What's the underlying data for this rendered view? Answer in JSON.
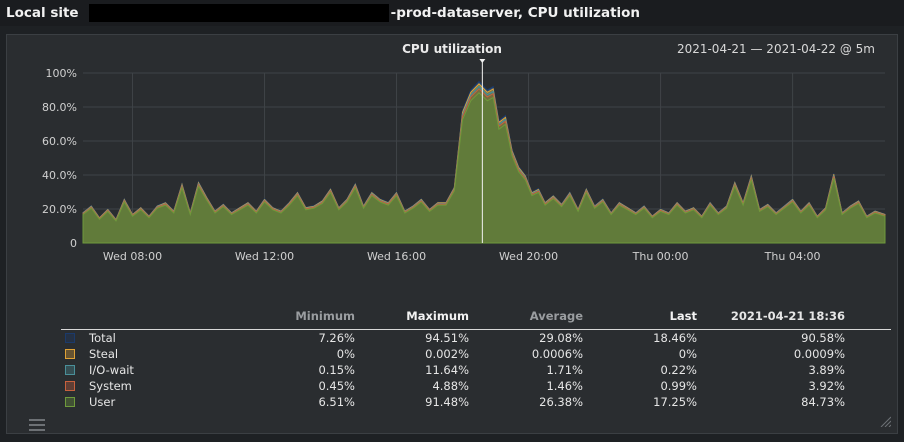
{
  "window": {
    "site_label": "Local site",
    "title_suffix": "-prod-dataserver, CPU utilization"
  },
  "chart": {
    "title": "CPU utilization",
    "time_range": "2021-04-21 — 2021-04-22 @ 5m"
  },
  "chart_data": {
    "type": "area",
    "title": "CPU utilization",
    "x_tick_labels": [
      "Wed 08:00",
      "Wed 12:00",
      "Wed 16:00",
      "Wed 20:00",
      "Thu 00:00",
      "Thu 04:00"
    ],
    "y_tick_labels": [
      "0",
      "20.0%",
      "40.0%",
      "60.0%",
      "80.0%",
      "100%"
    ],
    "ylim": [
      0,
      100
    ],
    "x_range_hours": [
      6.5,
      30.8
    ],
    "grid": true,
    "cursor_time": "2021-04-21 18:36",
    "total_profile": [
      [
        6.5,
        18
      ],
      [
        6.75,
        22
      ],
      [
        7.0,
        15
      ],
      [
        7.25,
        20
      ],
      [
        7.5,
        14
      ],
      [
        7.75,
        26
      ],
      [
        8.0,
        17
      ],
      [
        8.25,
        21
      ],
      [
        8.5,
        16
      ],
      [
        8.75,
        22
      ],
      [
        9.0,
        24
      ],
      [
        9.25,
        19
      ],
      [
        9.5,
        35
      ],
      [
        9.75,
        18
      ],
      [
        10.0,
        36
      ],
      [
        10.25,
        27
      ],
      [
        10.5,
        19
      ],
      [
        10.75,
        23
      ],
      [
        11.0,
        18
      ],
      [
        11.25,
        21
      ],
      [
        11.5,
        24
      ],
      [
        11.75,
        19
      ],
      [
        12.0,
        26
      ],
      [
        12.25,
        21
      ],
      [
        12.5,
        19
      ],
      [
        12.75,
        24
      ],
      [
        13.0,
        30
      ],
      [
        13.25,
        21
      ],
      [
        13.5,
        22
      ],
      [
        13.75,
        25
      ],
      [
        14.0,
        32
      ],
      [
        14.25,
        21
      ],
      [
        14.5,
        26
      ],
      [
        14.75,
        35
      ],
      [
        15.0,
        22
      ],
      [
        15.25,
        30
      ],
      [
        15.5,
        26
      ],
      [
        15.75,
        24
      ],
      [
        16.0,
        30
      ],
      [
        16.25,
        19
      ],
      [
        16.5,
        22
      ],
      [
        16.75,
        26
      ],
      [
        17.0,
        20
      ],
      [
        17.25,
        24
      ],
      [
        17.5,
        24
      ],
      [
        17.75,
        33
      ],
      [
        18.0,
        78
      ],
      [
        18.25,
        90
      ],
      [
        18.5,
        95
      ],
      [
        18.75,
        90
      ],
      [
        18.93,
        92
      ],
      [
        19.1,
        72
      ],
      [
        19.3,
        75
      ],
      [
        19.5,
        55
      ],
      [
        19.7,
        45
      ],
      [
        19.9,
        40
      ],
      [
        20.1,
        30
      ],
      [
        20.3,
        32
      ],
      [
        20.5,
        24
      ],
      [
        20.75,
        28
      ],
      [
        21.0,
        23
      ],
      [
        21.25,
        30
      ],
      [
        21.5,
        20
      ],
      [
        21.75,
        32
      ],
      [
        22.0,
        22
      ],
      [
        22.25,
        26
      ],
      [
        22.5,
        18
      ],
      [
        22.75,
        24
      ],
      [
        23.0,
        21
      ],
      [
        23.25,
        18
      ],
      [
        23.5,
        22
      ],
      [
        23.75,
        16
      ],
      [
        24.0,
        20
      ],
      [
        24.25,
        18
      ],
      [
        24.5,
        24
      ],
      [
        24.75,
        19
      ],
      [
        25.0,
        21
      ],
      [
        25.25,
        16
      ],
      [
        25.5,
        24
      ],
      [
        25.75,
        18
      ],
      [
        26.0,
        22
      ],
      [
        26.25,
        36
      ],
      [
        26.5,
        24
      ],
      [
        26.75,
        40
      ],
      [
        27.0,
        20
      ],
      [
        27.25,
        23
      ],
      [
        27.5,
        18
      ],
      [
        27.75,
        22
      ],
      [
        28.0,
        26
      ],
      [
        28.25,
        19
      ],
      [
        28.5,
        24
      ],
      [
        28.75,
        16
      ],
      [
        29.0,
        21
      ],
      [
        29.25,
        41
      ],
      [
        29.5,
        18
      ],
      [
        29.75,
        22
      ],
      [
        30.0,
        25
      ],
      [
        30.25,
        16
      ],
      [
        30.5,
        19
      ],
      [
        30.8,
        17
      ]
    ]
  },
  "stats": {
    "columns": [
      "Minimum",
      "Maximum",
      "Average",
      "Last",
      "2021-04-21 18:36"
    ],
    "rows": [
      {
        "name": "Total",
        "color": "#1b3a6b",
        "values": [
          "7.26%",
          "94.51%",
          "29.08%",
          "18.46%",
          "90.58%"
        ]
      },
      {
        "name": "Steal",
        "color": "#e0a236",
        "values": [
          "0%",
          "0.002%",
          "0.0006%",
          "0%",
          "0.0009%"
        ]
      },
      {
        "name": "I/O-wait",
        "color": "#4a8f99",
        "values": [
          "0.15%",
          "11.64%",
          "1.71%",
          "0.22%",
          "3.89%"
        ]
      },
      {
        "name": "System",
        "color": "#c8613e",
        "values": [
          "0.45%",
          "4.88%",
          "1.46%",
          "0.99%",
          "3.92%"
        ]
      },
      {
        "name": "User",
        "color": "#6f9a3c",
        "values": [
          "6.51%",
          "91.48%",
          "26.38%",
          "17.25%",
          "84.73%"
        ]
      }
    ]
  }
}
